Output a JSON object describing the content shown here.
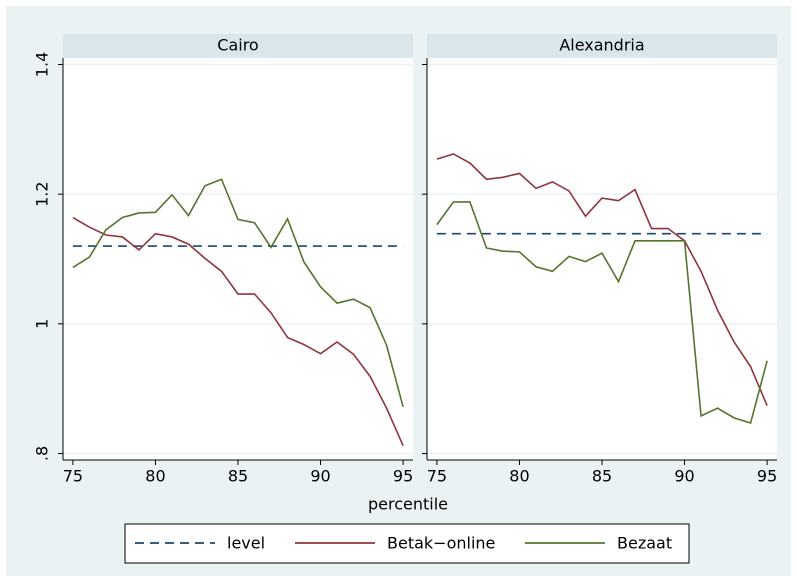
{
  "chart_data": {
    "type": "line",
    "panels": [
      "Cairo",
      "Alexandria"
    ],
    "xlabel": "percentile",
    "x": [
      75,
      76,
      77,
      78,
      79,
      80,
      81,
      82,
      83,
      84,
      85,
      86,
      87,
      88,
      89,
      90,
      91,
      92,
      93,
      94,
      95
    ],
    "xlim": [
      74.4,
      95.6
    ],
    "xticks": [
      75,
      80,
      85,
      90,
      95
    ],
    "ylim": [
      0.79,
      1.41
    ],
    "yticks": [
      {
        "value": 0.8,
        "label": ".8"
      },
      1,
      1.2,
      1.4
    ],
    "grid": true,
    "series": [
      {
        "name": "level",
        "color": "#1a476f",
        "style": "dashed",
        "values": [
          [
            1.12,
            1.12,
            1.12,
            1.12,
            1.12,
            1.12,
            1.12,
            1.12,
            1.12,
            1.12,
            1.12,
            1.12,
            1.12,
            1.12,
            1.12,
            1.12,
            1.12,
            1.12,
            1.12,
            1.12,
            1.12
          ],
          [
            1.139,
            1.139,
            1.139,
            1.139,
            1.139,
            1.139,
            1.139,
            1.139,
            1.139,
            1.139,
            1.139,
            1.139,
            1.139,
            1.139,
            1.139,
            1.139,
            1.139,
            1.139,
            1.139,
            1.139,
            1.139
          ]
        ]
      },
      {
        "name": "Betak−online",
        "color": "#90353b",
        "style": "solid",
        "values": [
          [
            1.164,
            1.149,
            1.137,
            1.134,
            1.114,
            1.139,
            1.134,
            1.123,
            1.101,
            1.081,
            1.046,
            1.046,
            1.017,
            0.979,
            0.968,
            0.954,
            0.972,
            0.953,
            0.919,
            0.87,
            0.812
          ],
          [
            1.254,
            1.262,
            1.248,
            1.223,
            1.226,
            1.232,
            1.209,
            1.219,
            1.205,
            1.166,
            1.194,
            1.19,
            1.207,
            1.147,
            1.147,
            1.128,
            1.081,
            1.021,
            0.972,
            0.934,
            0.874
          ]
        ]
      },
      {
        "name": "Bezaat",
        "color": "#55752f",
        "style": "solid",
        "values": [
          [
            1.087,
            1.103,
            1.145,
            1.164,
            1.171,
            1.172,
            1.199,
            1.167,
            1.213,
            1.223,
            1.161,
            1.156,
            1.118,
            1.162,
            1.095,
            1.057,
            1.032,
            1.038,
            1.025,
            0.967,
            0.872
          ],
          [
            1.153,
            1.188,
            1.188,
            1.117,
            1.112,
            1.111,
            1.088,
            1.081,
            1.104,
            1.096,
            1.109,
            1.065,
            1.128,
            1.128,
            1.128,
            1.128,
            0.858,
            0.87,
            0.855,
            0.847,
            0.943
          ]
        ]
      }
    ]
  }
}
